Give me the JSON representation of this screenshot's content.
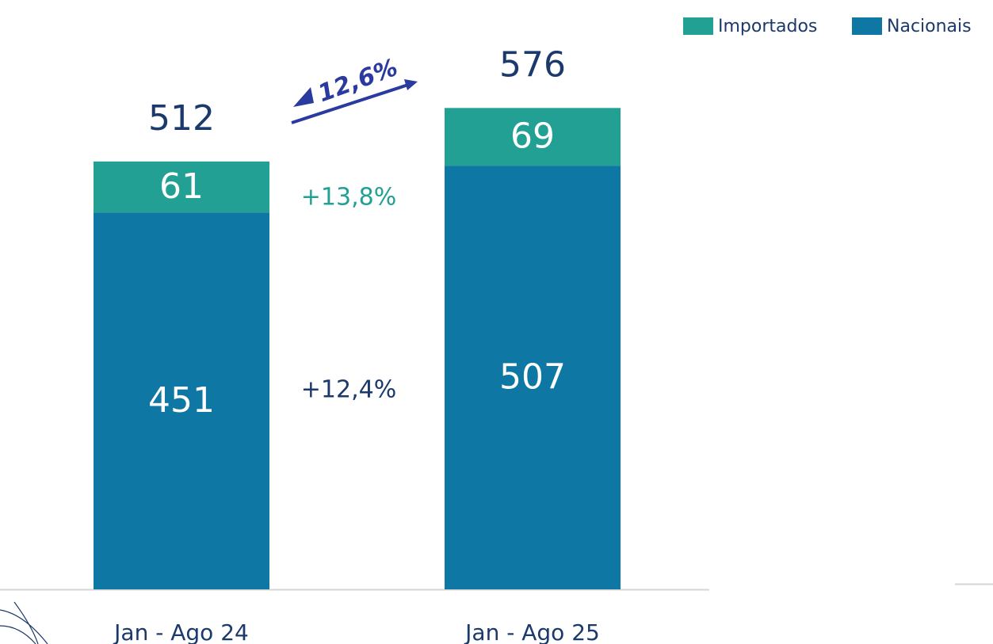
{
  "chart_data": {
    "type": "stacked_bar",
    "categories": [
      "Jan - Ago 24",
      "Jan - Ago 25"
    ],
    "series": [
      {
        "name": "Nacionais",
        "color": "#0e77a3",
        "values": [
          451,
          507
        ]
      },
      {
        "name": "Importados",
        "color": "#22a094",
        "values": [
          61,
          69
        ]
      }
    ],
    "totals": [
      512,
      576
    ],
    "annotations": {
      "total_growth": "12,6%",
      "importados_growth": "+13,8%",
      "nacionais_growth": "+12,4%"
    },
    "legend": "top-right"
  }
}
